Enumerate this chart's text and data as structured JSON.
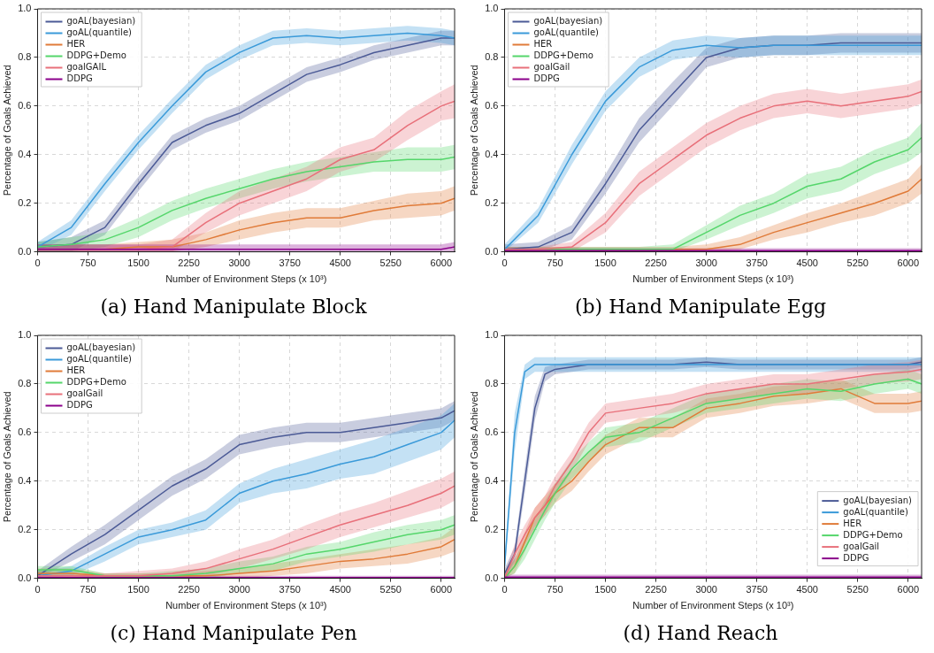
{
  "chart_data": [
    {
      "type": "line",
      "title": "(a) Hand Manipulate Block",
      "xlabel": "Number of Environment Steps (x 10³)",
      "ylabel": "Percentage of Goals Achieved",
      "xlim": [
        0,
        6200
      ],
      "xticks": [
        0,
        750,
        1500,
        2250,
        3000,
        3750,
        4500,
        5250,
        6000
      ],
      "ylim": [
        0,
        1
      ],
      "yticks": [
        {
          "value": 0,
          "label": "0.0"
        },
        {
          "value": 0.2,
          "label": "0.2"
        },
        {
          "value": 0.4,
          "label": "0.4"
        },
        {
          "value": 0.6,
          "label": "0.6"
        },
        {
          "value": 0.8,
          "label": "0.8"
        },
        {
          "value": 1,
          "label": "1.0"
        }
      ],
      "grid": true,
      "legend": "top left",
      "x": [
        0,
        500,
        1000,
        1500,
        2000,
        2500,
        3000,
        3500,
        4000,
        4500,
        5000,
        5500,
        6000,
        6200
      ],
      "series": [
        {
          "name": "goAL(bayesian)",
          "color": "#4b5a96",
          "values": [
            0.02,
            0.03,
            0.1,
            0.28,
            0.45,
            0.52,
            0.57,
            0.65,
            0.73,
            0.77,
            0.82,
            0.85,
            0.88,
            0.88
          ],
          "lower": [
            0,
            0,
            0.07,
            0.25,
            0.42,
            0.49,
            0.54,
            0.62,
            0.7,
            0.74,
            0.79,
            0.82,
            0.85,
            0.85
          ],
          "upper": [
            0.04,
            0.06,
            0.13,
            0.31,
            0.48,
            0.55,
            0.6,
            0.68,
            0.76,
            0.8,
            0.85,
            0.88,
            0.91,
            0.91
          ]
        },
        {
          "name": "goAL(quantile)",
          "color": "#3a9ad9",
          "values": [
            0.02,
            0.1,
            0.28,
            0.45,
            0.6,
            0.74,
            0.82,
            0.88,
            0.89,
            0.88,
            0.89,
            0.9,
            0.89,
            0.88
          ],
          "lower": [
            0,
            0.07,
            0.25,
            0.42,
            0.57,
            0.71,
            0.79,
            0.85,
            0.86,
            0.85,
            0.86,
            0.87,
            0.86,
            0.85
          ],
          "upper": [
            0.04,
            0.13,
            0.31,
            0.48,
            0.63,
            0.77,
            0.85,
            0.91,
            0.92,
            0.91,
            0.92,
            0.93,
            0.92,
            0.91
          ]
        },
        {
          "name": "HER",
          "color": "#e07b39",
          "values": [
            0.01,
            0.01,
            0.01,
            0.02,
            0.02,
            0.05,
            0.09,
            0.12,
            0.14,
            0.14,
            0.17,
            0.19,
            0.2,
            0.22
          ],
          "lower": [
            0,
            0,
            0,
            0,
            0,
            0.02,
            0.05,
            0.08,
            0.1,
            0.1,
            0.13,
            0.14,
            0.15,
            0.17
          ],
          "upper": [
            0.03,
            0.03,
            0.03,
            0.04,
            0.05,
            0.08,
            0.13,
            0.16,
            0.18,
            0.18,
            0.21,
            0.24,
            0.25,
            0.27
          ]
        },
        {
          "name": "DDPG+Demo",
          "color": "#55d66b",
          "values": [
            0.02,
            0.03,
            0.05,
            0.1,
            0.17,
            0.22,
            0.26,
            0.3,
            0.33,
            0.35,
            0.37,
            0.38,
            0.38,
            0.39
          ],
          "lower": [
            0,
            0,
            0.02,
            0.06,
            0.13,
            0.18,
            0.22,
            0.26,
            0.29,
            0.31,
            0.33,
            0.33,
            0.33,
            0.34
          ],
          "upper": [
            0.04,
            0.06,
            0.08,
            0.14,
            0.21,
            0.26,
            0.3,
            0.34,
            0.37,
            0.39,
            0.41,
            0.43,
            0.43,
            0.44
          ]
        },
        {
          "name": "goalGAIL",
          "color": "#e8707a",
          "values": [
            0.01,
            0.01,
            0.01,
            0.01,
            0.02,
            0.12,
            0.2,
            0.25,
            0.3,
            0.38,
            0.42,
            0.52,
            0.6,
            0.62
          ],
          "lower": [
            0,
            0,
            0,
            0,
            0,
            0.08,
            0.15,
            0.2,
            0.25,
            0.33,
            0.37,
            0.46,
            0.54,
            0.55
          ],
          "upper": [
            0.03,
            0.03,
            0.03,
            0.03,
            0.05,
            0.16,
            0.25,
            0.3,
            0.35,
            0.43,
            0.47,
            0.58,
            0.66,
            0.69
          ]
        },
        {
          "name": "DDPG",
          "color": "#8b008b",
          "values": [
            0.01,
            0.01,
            0.01,
            0.01,
            0.01,
            0.01,
            0.01,
            0.01,
            0.01,
            0.01,
            0.01,
            0.01,
            0.01,
            0.02
          ],
          "lower": [
            0,
            0,
            0,
            0,
            0,
            0,
            0,
            0,
            0,
            0,
            0,
            0,
            0,
            0
          ],
          "upper": [
            0.03,
            0.03,
            0.03,
            0.03,
            0.03,
            0.03,
            0.03,
            0.03,
            0.03,
            0.03,
            0.03,
            0.03,
            0.03,
            0.04
          ]
        }
      ]
    },
    {
      "type": "line",
      "title": "(b) Hand Manipulate Egg",
      "xlabel": "Number of Environment Steps (x 10³)",
      "ylabel": "Percentage of Goals Achieved",
      "xlim": [
        0,
        6200
      ],
      "xticks": [
        0,
        750,
        1500,
        2250,
        3000,
        3750,
        4500,
        5250,
        6000
      ],
      "ylim": [
        0,
        1
      ],
      "yticks": [
        {
          "value": 0,
          "label": "0.0"
        },
        {
          "value": 0.2,
          "label": "0.2"
        },
        {
          "value": 0.4,
          "label": "0.4"
        },
        {
          "value": 0.6,
          "label": "0.6"
        },
        {
          "value": 0.8,
          "label": "0.8"
        },
        {
          "value": 1,
          "label": "1.0"
        }
      ],
      "grid": true,
      "legend": "top left",
      "x": [
        0,
        500,
        1000,
        1500,
        2000,
        2500,
        3000,
        3500,
        4000,
        4500,
        5000,
        5500,
        6000,
        6200
      ],
      "series": [
        {
          "name": "goAL(bayesian)",
          "color": "#4b5a96",
          "values": [
            0.01,
            0.02,
            0.08,
            0.28,
            0.5,
            0.65,
            0.8,
            0.84,
            0.85,
            0.85,
            0.86,
            0.86,
            0.86,
            0.86
          ],
          "lower": [
            0,
            0,
            0.05,
            0.24,
            0.45,
            0.6,
            0.76,
            0.8,
            0.81,
            0.81,
            0.82,
            0.82,
            0.82,
            0.82
          ],
          "upper": [
            0.03,
            0.04,
            0.11,
            0.32,
            0.55,
            0.7,
            0.84,
            0.88,
            0.89,
            0.89,
            0.9,
            0.9,
            0.9,
            0.9
          ]
        },
        {
          "name": "goAL(quantile)",
          "color": "#3a9ad9",
          "values": [
            0.01,
            0.15,
            0.4,
            0.62,
            0.76,
            0.83,
            0.85,
            0.84,
            0.85,
            0.85,
            0.85,
            0.85,
            0.85,
            0.85
          ],
          "lower": [
            0,
            0.12,
            0.36,
            0.58,
            0.72,
            0.79,
            0.81,
            0.8,
            0.81,
            0.81,
            0.81,
            0.81,
            0.81,
            0.81
          ],
          "upper": [
            0.03,
            0.18,
            0.44,
            0.66,
            0.8,
            0.87,
            0.89,
            0.88,
            0.89,
            0.89,
            0.89,
            0.89,
            0.89,
            0.89
          ]
        },
        {
          "name": "HER",
          "color": "#e07b39",
          "values": [
            0.01,
            0.01,
            0.01,
            0.01,
            0.01,
            0.01,
            0.01,
            0.03,
            0.08,
            0.12,
            0.16,
            0.2,
            0.25,
            0.3
          ],
          "lower": [
            0,
            0,
            0,
            0,
            0,
            0,
            0,
            0.01,
            0.05,
            0.08,
            0.12,
            0.15,
            0.2,
            0.24
          ],
          "upper": [
            0.02,
            0.02,
            0.02,
            0.02,
            0.02,
            0.02,
            0.03,
            0.06,
            0.11,
            0.16,
            0.2,
            0.25,
            0.3,
            0.36
          ]
        },
        {
          "name": "DDPG+Demo",
          "color": "#55d66b",
          "values": [
            0.01,
            0.01,
            0.01,
            0.01,
            0.01,
            0.01,
            0.08,
            0.15,
            0.2,
            0.27,
            0.3,
            0.37,
            0.42,
            0.47
          ],
          "lower": [
            0,
            0,
            0,
            0,
            0,
            0,
            0.05,
            0.11,
            0.16,
            0.22,
            0.25,
            0.32,
            0.37,
            0.41
          ],
          "upper": [
            0.02,
            0.02,
            0.02,
            0.02,
            0.02,
            0.03,
            0.11,
            0.19,
            0.24,
            0.32,
            0.35,
            0.42,
            0.47,
            0.53
          ]
        },
        {
          "name": "goalGail",
          "color": "#e8707a",
          "values": [
            0.01,
            0.01,
            0.02,
            0.12,
            0.28,
            0.38,
            0.48,
            0.55,
            0.6,
            0.62,
            0.6,
            0.62,
            0.64,
            0.66
          ],
          "lower": [
            0,
            0,
            0,
            0.08,
            0.23,
            0.33,
            0.43,
            0.5,
            0.55,
            0.57,
            0.55,
            0.57,
            0.59,
            0.61
          ],
          "upper": [
            0.02,
            0.02,
            0.04,
            0.16,
            0.33,
            0.43,
            0.53,
            0.6,
            0.65,
            0.67,
            0.65,
            0.67,
            0.69,
            0.71
          ]
        },
        {
          "name": "DDPG",
          "color": "#8b008b",
          "values": [
            0.005,
            0.005,
            0.005,
            0.005,
            0.005,
            0.005,
            0.005,
            0.005,
            0.005,
            0.005,
            0.005,
            0.005,
            0.005,
            0.005
          ],
          "lower": [
            0,
            0,
            0,
            0,
            0,
            0,
            0,
            0,
            0,
            0,
            0,
            0,
            0,
            0
          ],
          "upper": [
            0.015,
            0.015,
            0.015,
            0.015,
            0.015,
            0.015,
            0.015,
            0.015,
            0.015,
            0.015,
            0.015,
            0.015,
            0.015,
            0.015
          ]
        }
      ]
    },
    {
      "type": "line",
      "title": "(c) Hand Manipulate Pen",
      "xlabel": "Number of Environment Steps (x 10³)",
      "ylabel": "Percentage of Goals Achieved",
      "xlim": [
        0,
        6200
      ],
      "xticks": [
        0,
        750,
        1500,
        2250,
        3000,
        3750,
        4500,
        5250,
        6000
      ],
      "ylim": [
        0,
        1
      ],
      "yticks": [
        {
          "value": 0,
          "label": "0.0"
        },
        {
          "value": 0.2,
          "label": "0.2"
        },
        {
          "value": 0.4,
          "label": "0.4"
        },
        {
          "value": 0.6,
          "label": "0.6"
        },
        {
          "value": 0.8,
          "label": "0.8"
        },
        {
          "value": 1,
          "label": "1.0"
        }
      ],
      "grid": true,
      "legend": "top left",
      "x": [
        0,
        500,
        1000,
        1500,
        2000,
        2500,
        3000,
        3500,
        4000,
        4500,
        5000,
        5500,
        6000,
        6200
      ],
      "series": [
        {
          "name": "goAL(bayesian)",
          "color": "#4b5a96",
          "values": [
            0.01,
            0.1,
            0.18,
            0.28,
            0.38,
            0.45,
            0.55,
            0.58,
            0.6,
            0.6,
            0.62,
            0.64,
            0.66,
            0.69
          ],
          "lower": [
            0,
            0.07,
            0.14,
            0.24,
            0.34,
            0.41,
            0.51,
            0.54,
            0.56,
            0.56,
            0.58,
            0.6,
            0.62,
            0.65
          ],
          "upper": [
            0.03,
            0.13,
            0.22,
            0.32,
            0.42,
            0.49,
            0.59,
            0.62,
            0.64,
            0.64,
            0.66,
            0.68,
            0.7,
            0.73
          ]
        },
        {
          "name": "goAL(quantile)",
          "color": "#3a9ad9",
          "values": [
            0.01,
            0.03,
            0.1,
            0.17,
            0.2,
            0.24,
            0.35,
            0.4,
            0.43,
            0.47,
            0.5,
            0.55,
            0.6,
            0.65
          ],
          "lower": [
            0,
            0.01,
            0.07,
            0.14,
            0.17,
            0.2,
            0.31,
            0.35,
            0.37,
            0.41,
            0.43,
            0.48,
            0.53,
            0.58
          ],
          "upper": [
            0.03,
            0.05,
            0.13,
            0.2,
            0.23,
            0.28,
            0.39,
            0.45,
            0.49,
            0.53,
            0.57,
            0.62,
            0.67,
            0.72
          ]
        },
        {
          "name": "HER",
          "color": "#e07b39",
          "values": [
            0.02,
            0.02,
            0.01,
            0.01,
            0.01,
            0.01,
            0.02,
            0.03,
            0.05,
            0.07,
            0.08,
            0.1,
            0.13,
            0.16
          ],
          "lower": [
            0,
            0,
            0,
            0,
            0,
            0,
            0,
            0.01,
            0.02,
            0.04,
            0.05,
            0.06,
            0.09,
            0.11
          ],
          "upper": [
            0.04,
            0.04,
            0.02,
            0.02,
            0.02,
            0.03,
            0.04,
            0.06,
            0.08,
            0.1,
            0.12,
            0.14,
            0.17,
            0.21
          ]
        },
        {
          "name": "DDPG+Demo",
          "color": "#55d66b",
          "values": [
            0.035,
            0.035,
            0.01,
            0.01,
            0.01,
            0.02,
            0.04,
            0.06,
            0.1,
            0.12,
            0.15,
            0.18,
            0.2,
            0.22
          ],
          "lower": [
            0.01,
            0.01,
            0,
            0,
            0,
            0,
            0.02,
            0.03,
            0.07,
            0.09,
            0.11,
            0.14,
            0.16,
            0.18
          ],
          "upper": [
            0.05,
            0.05,
            0.02,
            0.02,
            0.03,
            0.04,
            0.07,
            0.09,
            0.13,
            0.15,
            0.19,
            0.22,
            0.24,
            0.26
          ]
        },
        {
          "name": "goalGail",
          "color": "#e8707a",
          "values": [
            0.01,
            0.01,
            0.01,
            0.01,
            0.02,
            0.04,
            0.08,
            0.12,
            0.17,
            0.22,
            0.26,
            0.3,
            0.35,
            0.38
          ],
          "lower": [
            0,
            0,
            0,
            0,
            0,
            0.01,
            0.04,
            0.08,
            0.12,
            0.17,
            0.21,
            0.25,
            0.29,
            0.32
          ],
          "upper": [
            0.02,
            0.02,
            0.02,
            0.03,
            0.04,
            0.07,
            0.12,
            0.16,
            0.22,
            0.27,
            0.31,
            0.36,
            0.41,
            0.44
          ]
        },
        {
          "name": "DDPG",
          "color": "#8b008b",
          "values": [
            0.003,
            0.003,
            0.003,
            0.003,
            0.003,
            0.003,
            0.003,
            0.003,
            0.003,
            0.003,
            0.003,
            0.003,
            0.003,
            0.003
          ],
          "lower": [
            0,
            0,
            0,
            0,
            0,
            0,
            0,
            0,
            0,
            0,
            0,
            0,
            0,
            0
          ],
          "upper": [
            0.01,
            0.01,
            0.01,
            0.01,
            0.01,
            0.01,
            0.01,
            0.01,
            0.01,
            0.01,
            0.01,
            0.01,
            0.01,
            0.01
          ]
        }
      ]
    },
    {
      "type": "line",
      "title": "(d) Hand Reach",
      "xlabel": "Number of Environment Steps (x 10³)",
      "ylabel": "Percentage of Goals Achieved",
      "xlim": [
        0,
        6200
      ],
      "xticks": [
        0,
        750,
        1500,
        2250,
        3000,
        3750,
        4500,
        5250,
        6000
      ],
      "ylim": [
        0,
        1
      ],
      "yticks": [
        {
          "value": 0,
          "label": "0.0"
        },
        {
          "value": 0.2,
          "label": "0.2"
        },
        {
          "value": 0.4,
          "label": "0.4"
        },
        {
          "value": 0.6,
          "label": "0.6"
        },
        {
          "value": 0.8,
          "label": "0.8"
        },
        {
          "value": 1,
          "label": "1.0"
        }
      ],
      "grid": true,
      "legend": "bottom right",
      "x": [
        0,
        150,
        300,
        450,
        600,
        750,
        1000,
        1250,
        1500,
        2000,
        2500,
        3000,
        3500,
        4000,
        4500,
        5000,
        5500,
        6000,
        6200
      ],
      "series": [
        {
          "name": "goAL(bayesian)",
          "color": "#4b5a96",
          "values": [
            0.02,
            0.1,
            0.4,
            0.7,
            0.84,
            0.86,
            0.87,
            0.88,
            0.88,
            0.88,
            0.88,
            0.89,
            0.88,
            0.88,
            0.88,
            0.88,
            0.88,
            0.88,
            0.89
          ],
          "lower": [
            0,
            0.07,
            0.35,
            0.65,
            0.81,
            0.84,
            0.85,
            0.86,
            0.86,
            0.86,
            0.86,
            0.87,
            0.86,
            0.86,
            0.86,
            0.86,
            0.86,
            0.86,
            0.87
          ],
          "upper": [
            0.04,
            0.13,
            0.45,
            0.75,
            0.87,
            0.88,
            0.89,
            0.9,
            0.9,
            0.9,
            0.9,
            0.91,
            0.9,
            0.9,
            0.9,
            0.9,
            0.9,
            0.9,
            0.91
          ]
        },
        {
          "name": "goAL(quantile)",
          "color": "#3a9ad9",
          "values": [
            0.05,
            0.6,
            0.85,
            0.88,
            0.88,
            0.88,
            0.88,
            0.88,
            0.88,
            0.88,
            0.88,
            0.88,
            0.88,
            0.88,
            0.88,
            0.88,
            0.88,
            0.88,
            0.88
          ],
          "lower": [
            0.02,
            0.52,
            0.82,
            0.85,
            0.85,
            0.85,
            0.85,
            0.85,
            0.85,
            0.85,
            0.85,
            0.85,
            0.85,
            0.85,
            0.85,
            0.85,
            0.85,
            0.85,
            0.85
          ],
          "upper": [
            0.08,
            0.68,
            0.88,
            0.91,
            0.91,
            0.91,
            0.91,
            0.91,
            0.91,
            0.91,
            0.91,
            0.91,
            0.91,
            0.91,
            0.91,
            0.91,
            0.91,
            0.91,
            0.91
          ]
        },
        {
          "name": "HER",
          "color": "#e07b39",
          "values": [
            0,
            0.05,
            0.15,
            0.25,
            0.3,
            0.35,
            0.4,
            0.48,
            0.55,
            0.62,
            0.62,
            0.7,
            0.72,
            0.75,
            0.76,
            0.78,
            0.72,
            0.72,
            0.73
          ],
          "lower": [
            0,
            0.02,
            0.11,
            0.21,
            0.26,
            0.31,
            0.36,
            0.44,
            0.51,
            0.58,
            0.58,
            0.66,
            0.68,
            0.71,
            0.72,
            0.74,
            0.68,
            0.68,
            0.69
          ],
          "upper": [
            0.02,
            0.08,
            0.19,
            0.29,
            0.34,
            0.39,
            0.44,
            0.52,
            0.59,
            0.66,
            0.66,
            0.74,
            0.76,
            0.79,
            0.8,
            0.82,
            0.76,
            0.76,
            0.77
          ]
        },
        {
          "name": "DDPG+Demo",
          "color": "#55d66b",
          "values": [
            0,
            0.05,
            0.12,
            0.2,
            0.28,
            0.35,
            0.45,
            0.52,
            0.58,
            0.6,
            0.66,
            0.72,
            0.74,
            0.76,
            0.78,
            0.77,
            0.8,
            0.82,
            0.8
          ],
          "lower": [
            0,
            0.02,
            0.08,
            0.16,
            0.24,
            0.31,
            0.41,
            0.48,
            0.54,
            0.56,
            0.62,
            0.68,
            0.7,
            0.72,
            0.74,
            0.73,
            0.76,
            0.78,
            0.76
          ],
          "upper": [
            0.02,
            0.08,
            0.16,
            0.24,
            0.32,
            0.39,
            0.49,
            0.56,
            0.62,
            0.64,
            0.7,
            0.76,
            0.78,
            0.8,
            0.82,
            0.81,
            0.84,
            0.86,
            0.84
          ]
        },
        {
          "name": "goalGail",
          "color": "#e8707a",
          "values": [
            0,
            0.1,
            0.18,
            0.25,
            0.3,
            0.38,
            0.48,
            0.6,
            0.68,
            0.7,
            0.72,
            0.76,
            0.78,
            0.8,
            0.8,
            0.82,
            0.84,
            0.85,
            0.86
          ],
          "lower": [
            0,
            0.06,
            0.14,
            0.21,
            0.26,
            0.34,
            0.44,
            0.56,
            0.64,
            0.66,
            0.68,
            0.72,
            0.74,
            0.76,
            0.76,
            0.78,
            0.8,
            0.81,
            0.82
          ],
          "upper": [
            0.02,
            0.14,
            0.22,
            0.29,
            0.34,
            0.42,
            0.52,
            0.64,
            0.72,
            0.74,
            0.76,
            0.8,
            0.82,
            0.84,
            0.84,
            0.86,
            0.88,
            0.89,
            0.9
          ]
        },
        {
          "name": "DDPG",
          "color": "#8b008b",
          "values": [
            0.005,
            0.005,
            0.005,
            0.005,
            0.005,
            0.005,
            0.005,
            0.005,
            0.005,
            0.005,
            0.005,
            0.005,
            0.005,
            0.005,
            0.005,
            0.005,
            0.005,
            0.005,
            0.005
          ],
          "lower": [
            0,
            0,
            0,
            0,
            0,
            0,
            0,
            0,
            0,
            0,
            0,
            0,
            0,
            0,
            0,
            0,
            0,
            0,
            0
          ],
          "upper": [
            0.015,
            0.015,
            0.015,
            0.015,
            0.015,
            0.015,
            0.015,
            0.015,
            0.015,
            0.015,
            0.015,
            0.015,
            0.015,
            0.015,
            0.015,
            0.015,
            0.015,
            0.015,
            0.015
          ]
        }
      ]
    }
  ]
}
